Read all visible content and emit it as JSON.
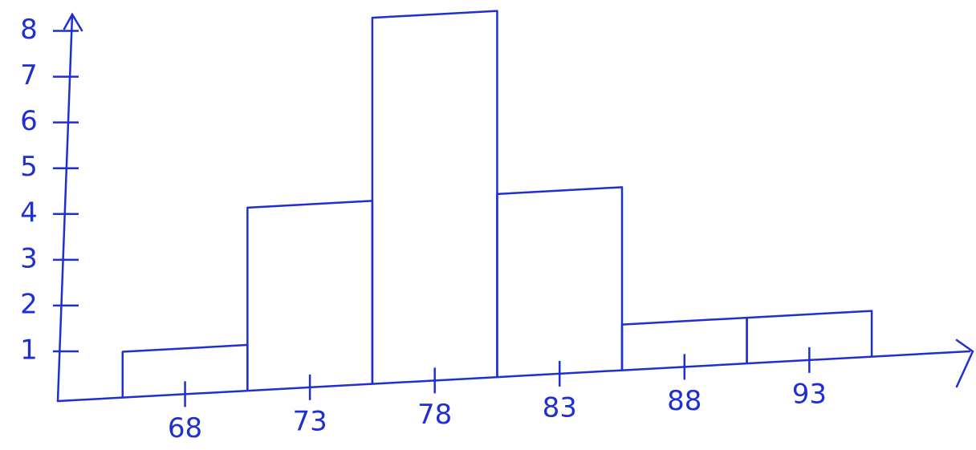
{
  "chart_data": {
    "type": "histogram",
    "bins": [
      65.5,
      70.5,
      75.5,
      80.5,
      85.5,
      90.5,
      95.5
    ],
    "values": [
      1,
      4,
      8,
      4,
      1,
      1
    ],
    "color": "#1f2fd0",
    "xlim": [
      63,
      99
    ],
    "xticks": [
      68,
      73,
      78,
      83,
      88,
      93
    ],
    "ylim": [
      0,
      8.5
    ],
    "yticks": [
      1,
      2,
      3,
      4,
      5,
      6,
      7,
      8
    ],
    "grid": false
  }
}
